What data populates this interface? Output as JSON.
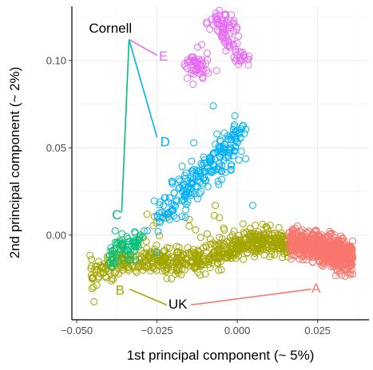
{
  "chart_data": {
    "type": "scatter",
    "xlabel": "1st principal component (~ 5%)",
    "ylabel": "2nd principal component (~ 2%)",
    "xlim": [
      -0.0515,
      0.041
    ],
    "ylim": [
      -0.0485,
      0.131
    ],
    "x_ticks": [
      -0.05,
      -0.025,
      0.0,
      0.025
    ],
    "x_tick_labels": [
      "−0.050",
      "−0.025",
      "0.000",
      "0.025"
    ],
    "y_ticks": [
      0.0,
      0.05,
      0.1
    ],
    "y_tick_labels": [
      "0.00",
      "0.05",
      "0.10"
    ],
    "grid": true,
    "legend": "none",
    "series": [
      {
        "label": "A",
        "color": "#f8766d",
        "cluster": {
          "x_range": [
            0.016,
            0.036
          ],
          "y_center": -0.008,
          "y_spread": 0.007
        }
      },
      {
        "label": "B",
        "color": "#a3a500",
        "cluster": {
          "x_range": [
            -0.046,
            0.017
          ],
          "y_center": -0.012,
          "y_spread": 0.009
        }
      },
      {
        "label": "C",
        "color": "#00bf7d",
        "cluster": {
          "x_range": [
            -0.04,
            -0.029
          ],
          "y_center": -0.006,
          "y_spread": 0.006
        }
      },
      {
        "label": "D",
        "color": "#00b0f6",
        "cluster": {
          "x_range": [
            -0.025,
            0.001
          ],
          "y_center": 0.033,
          "y_spread": 0.012
        }
      },
      {
        "label": "E",
        "color": "#e76bf3",
        "cluster": {
          "x_range": [
            -0.017,
            0.002
          ],
          "y_center": 0.105,
          "y_spread": 0.01
        }
      }
    ],
    "annotations": [
      {
        "text": "Cornell",
        "x": -0.0395,
        "y": 0.118,
        "color": "#000000"
      },
      {
        "text": "UK",
        "x": -0.0185,
        "y": -0.04,
        "color": "#000000"
      },
      {
        "text": "A",
        "x": 0.0245,
        "y": -0.031,
        "color": "#f8766d"
      },
      {
        "text": "B",
        "x": -0.0365,
        "y": -0.032,
        "color": "#a3a500"
      },
      {
        "text": "C",
        "x": -0.0375,
        "y": 0.011,
        "color": "#00bf7d"
      },
      {
        "text": "D",
        "x": -0.0225,
        "y": 0.053,
        "color": "#00b0f6"
      },
      {
        "text": "E",
        "x": -0.023,
        "y": 0.102,
        "color": "#e76bf3"
      }
    ],
    "connectors": [
      {
        "from": [
          -0.0337,
          0.112
        ],
        "to": [
          -0.025,
          0.103
        ],
        "color": "#e76bf3"
      },
      {
        "from": [
          -0.0337,
          0.112
        ],
        "to": [
          -0.025,
          0.056
        ],
        "color": "#00b0f6"
      },
      {
        "from": [
          -0.0337,
          0.112
        ],
        "to": [
          -0.036,
          0.013
        ],
        "color": "#00bf7d"
      },
      {
        "from": [
          -0.0335,
          -0.031
        ],
        "to": [
          -0.022,
          -0.04
        ],
        "color": "#a3a500"
      },
      {
        "from": [
          -0.0145,
          -0.04
        ],
        "to": [
          0.023,
          -0.031
        ],
        "color": "#f8766d"
      }
    ]
  }
}
